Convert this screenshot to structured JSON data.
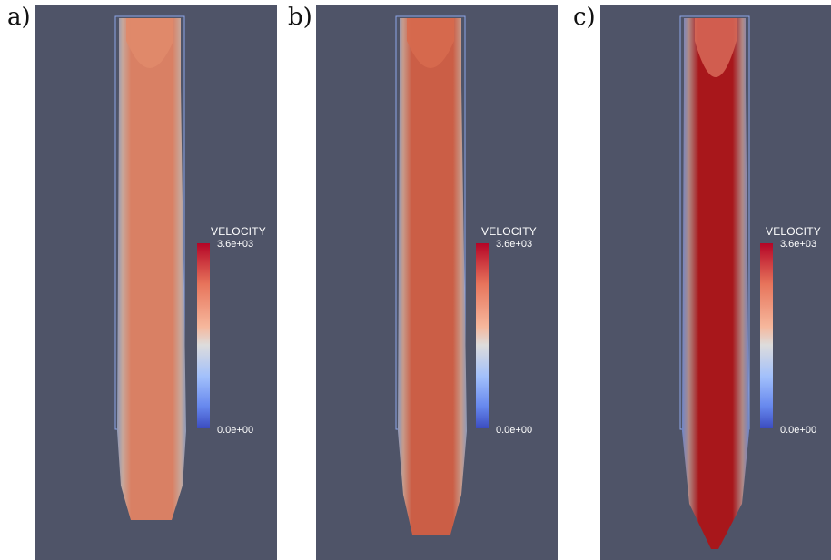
{
  "panels": [
    {
      "label": "a)",
      "legend": {
        "title": "VELOCITY",
        "max": "3.6e+03",
        "min": "0.0e+00"
      },
      "jet_color": "#d98064"
    },
    {
      "label": "b)",
      "legend": {
        "title": "VELOCITY",
        "max": "3.6e+03",
        "min": "0.0e+00"
      },
      "jet_color": "#cb5e46"
    },
    {
      "label": "c)",
      "legend": {
        "title": "VELOCITY",
        "max": "3.6e+03",
        "min": "0.0e+00"
      },
      "jet_color": "#a8171b"
    }
  ],
  "colors": {
    "background": "#4f5468",
    "colormap_high": "#b40426",
    "colormap_mid": "#dddcdc",
    "colormap_low": "#3b4cc0"
  }
}
